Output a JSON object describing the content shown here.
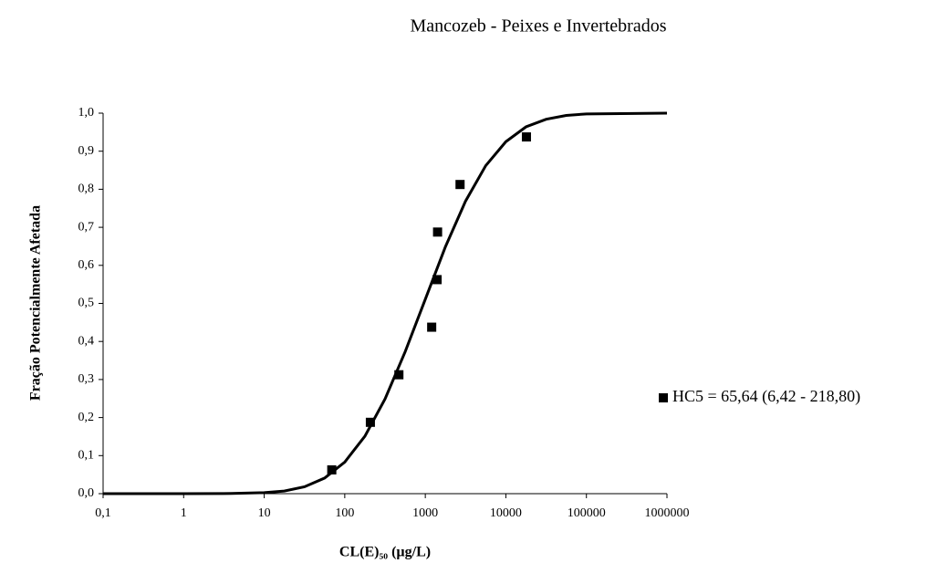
{
  "chart_data": {
    "type": "scatter",
    "title": "Mancozeb - Peixes e Invertebrados",
    "x_label": "CL(E)₅₀ (µg/L)",
    "y_label": "Fração Potencialmente Afetada",
    "xscale": "log",
    "xlim": [
      0.1,
      1000000
    ],
    "xticks": [
      {
        "value": 0.1,
        "label": "0,1"
      },
      1,
      10,
      100,
      1000,
      10000,
      100000,
      1000000
    ],
    "ylim": [
      0,
      1
    ],
    "yticks": [
      {
        "value": 0,
        "label": "0,0"
      },
      {
        "value": 0.1,
        "label": "0,1"
      },
      {
        "value": 0.2,
        "label": "0,2"
      },
      {
        "value": 0.3,
        "label": "0,3"
      },
      {
        "value": 0.4,
        "label": "0,4"
      },
      {
        "value": 0.5,
        "label": "0,5"
      },
      {
        "value": 0.6,
        "label": "0,6"
      },
      {
        "value": 0.7,
        "label": "0,7"
      },
      {
        "value": 0.8,
        "label": "0,8"
      },
      {
        "value": 0.9,
        "label": "0,9"
      },
      {
        "value": 1,
        "label": "1,0"
      }
    ],
    "legend": "right",
    "series": [
      {
        "name": "HC5 = 65,64 (6,42 - 218,80)",
        "color": "#000000",
        "x": [
          69,
          208,
          470,
          1200,
          1400,
          1420,
          2700,
          18000
        ],
        "values": [
          0.0625,
          0.1875,
          0.3125,
          0.4375,
          0.5625,
          0.6875,
          0.8125,
          0.9375
        ]
      }
    ],
    "curve": {
      "color": "#000000",
      "x": [
        0.1,
        1,
        3.162,
        10,
        17.78,
        31.62,
        56.23,
        100,
        177.8,
        316.2,
        562.3,
        1000,
        1778,
        3162,
        5623,
        10000,
        17783,
        31623,
        56234,
        100000,
        1000000
      ],
      "values": [
        0,
        0,
        0.0002,
        0.0026,
        0.007,
        0.018,
        0.041,
        0.083,
        0.151,
        0.249,
        0.373,
        0.511,
        0.649,
        0.769,
        0.862,
        0.925,
        0.964,
        0.984,
        0.994,
        0.998,
        1
      ]
    }
  }
}
